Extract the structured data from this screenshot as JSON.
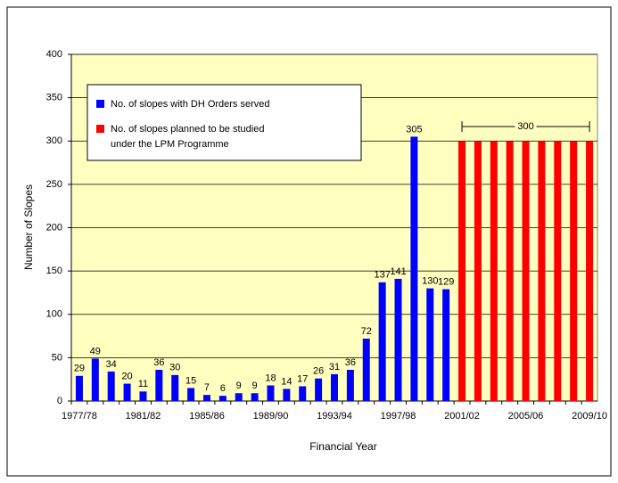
{
  "chart_data": {
    "type": "bar",
    "categories": [
      "1977/78",
      null,
      null,
      null,
      "1981/82",
      null,
      null,
      null,
      "1985/86",
      null,
      null,
      null,
      "1989/90",
      null,
      null,
      null,
      "1993/94",
      null,
      null,
      null,
      "1997/98",
      null,
      null,
      null,
      "2001/02",
      null,
      null,
      null,
      "2005/06",
      null,
      null,
      null,
      "2009/10"
    ],
    "series": [
      {
        "name": "No. of slopes with DH Orders served",
        "color": "#0000ff",
        "values": [
          29,
          49,
          34,
          20,
          11,
          36,
          30,
          15,
          7,
          6,
          9,
          9,
          18,
          14,
          17,
          26,
          31,
          36,
          72,
          137,
          141,
          305,
          130,
          129,
          null,
          null,
          null,
          null,
          null,
          null,
          null,
          null,
          null
        ]
      },
      {
        "name": "No. of slopes planned to be studied under the LPM Programme",
        "color": "#ff0000",
        "values": [
          null,
          null,
          null,
          null,
          null,
          null,
          null,
          null,
          null,
          null,
          null,
          null,
          null,
          null,
          null,
          null,
          null,
          null,
          null,
          null,
          null,
          null,
          null,
          null,
          300,
          300,
          300,
          300,
          300,
          300,
          300,
          300,
          300
        ]
      }
    ],
    "annotation": "300",
    "x_label": "Financial Year",
    "y_label": "Number of Slopes",
    "ylim": [
      0,
      400
    ],
    "yticks": [
      0,
      50,
      100,
      150,
      200,
      250,
      300,
      350,
      400
    ],
    "grid": true
  }
}
